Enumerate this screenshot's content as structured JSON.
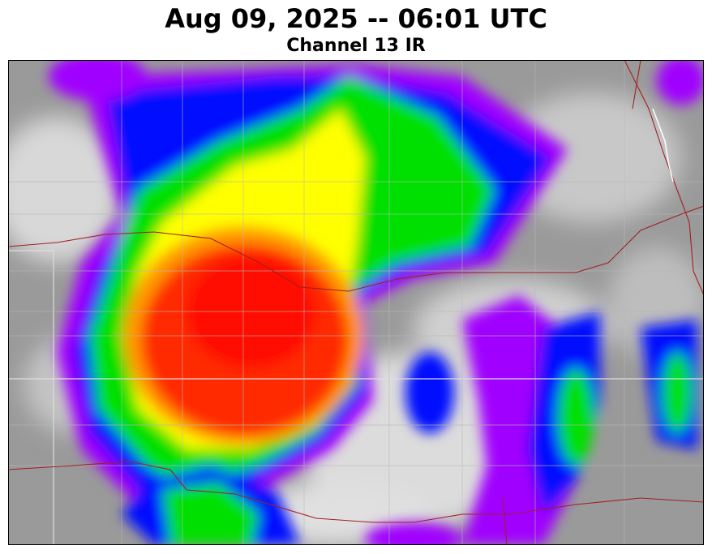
{
  "header": {
    "title": "Aug 09, 2025 -- 06:01 UTC",
    "subtitle": "Channel 13 IR"
  }
}
